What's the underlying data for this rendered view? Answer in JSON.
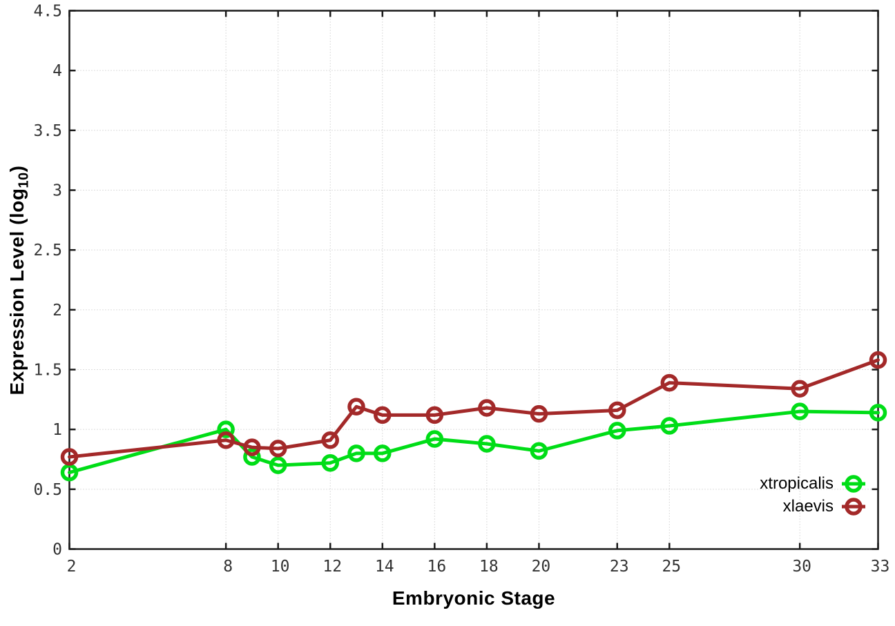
{
  "chart_data": {
    "type": "line",
    "title": "",
    "xlabel": "Embryonic Stage",
    "ylabel": "Expression Level (log10)",
    "ylabel_parts": {
      "prefix": "Expression Level (log",
      "sub": "10",
      "suffix": ")"
    },
    "xlim": [
      2,
      33
    ],
    "ylim": [
      0,
      4.5
    ],
    "grid": true,
    "legend_position": "inside-bottom-right",
    "x": [
      2,
      8,
      9,
      10,
      12,
      13,
      14,
      16,
      18,
      20,
      23,
      25,
      30,
      33
    ],
    "xticks": [
      2,
      8,
      10,
      12,
      14,
      16,
      18,
      20,
      23,
      25,
      30,
      33
    ],
    "xtick_labels": [
      "2",
      "8",
      "10",
      "12",
      "14",
      "16",
      "18",
      "20",
      "23",
      "25",
      "30",
      "33"
    ],
    "yticks": [
      0,
      0.5,
      1,
      1.5,
      2,
      2.5,
      3,
      3.5,
      4,
      4.5
    ],
    "ytick_labels": [
      "0",
      "0.5",
      "1",
      "1.5",
      "2",
      "2.5",
      "3",
      "3.5",
      "4",
      "4.5"
    ],
    "series": [
      {
        "name": "xtropicalis",
        "color": "#00dd17",
        "values": [
          0.64,
          1.0,
          0.77,
          0.7,
          0.72,
          0.8,
          0.8,
          0.92,
          0.88,
          0.82,
          0.99,
          1.03,
          1.15,
          1.14
        ]
      },
      {
        "name": "xlaevis",
        "color": "#a32929",
        "values": [
          0.77,
          0.91,
          0.85,
          0.84,
          0.91,
          1.19,
          1.12,
          1.12,
          1.18,
          1.13,
          1.16,
          1.39,
          1.34,
          1.58
        ]
      }
    ]
  },
  "style": {
    "grid_color": "#b9b9b9",
    "axis_color": "#1a1a1a",
    "tick_text_color": "#333333"
  }
}
